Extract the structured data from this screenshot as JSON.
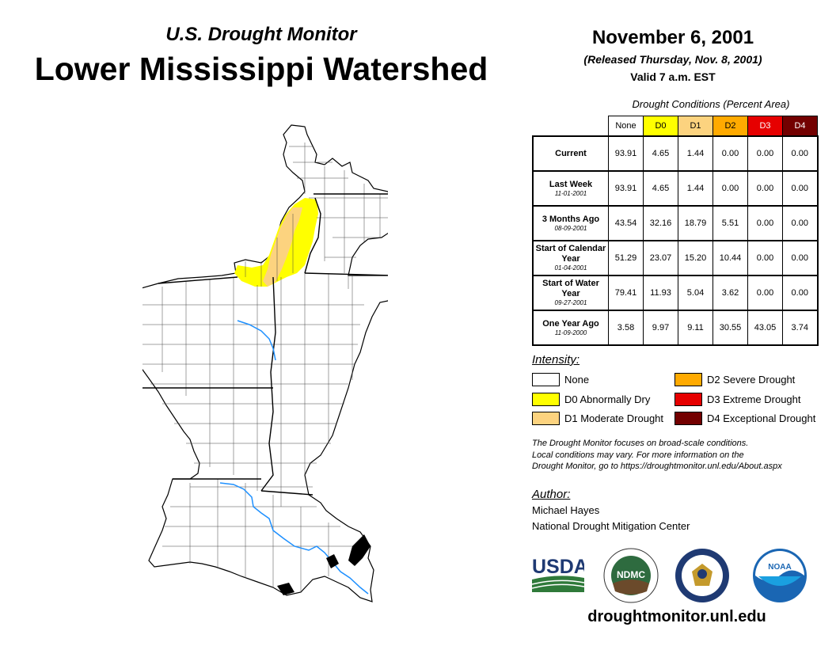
{
  "header": {
    "subtitle": "U.S. Drought Monitor",
    "title": "Lower Mississippi Watershed",
    "date": "November 6, 2001",
    "released": "(Released Thursday, Nov. 8, 2001)",
    "valid": "Valid 7 a.m. EST"
  },
  "table": {
    "caption": "Drought Conditions (Percent Area)",
    "columns": [
      {
        "label": "None",
        "color": "#ffffff"
      },
      {
        "label": "D0",
        "color": "#ffff00"
      },
      {
        "label": "D1",
        "color": "#fcd37f"
      },
      {
        "label": "D2",
        "color": "#ffaa00"
      },
      {
        "label": "D3",
        "color": "#e60000"
      },
      {
        "label": "D4",
        "color": "#730000"
      }
    ],
    "rows": [
      {
        "label": "Current",
        "date": "",
        "values": [
          "93.91",
          "4.65",
          "1.44",
          "0.00",
          "0.00",
          "0.00"
        ]
      },
      {
        "label": "Last Week",
        "date": "11-01-2001",
        "values": [
          "93.91",
          "4.65",
          "1.44",
          "0.00",
          "0.00",
          "0.00"
        ]
      },
      {
        "label": "3 Months Ago",
        "date": "08-09-2001",
        "values": [
          "43.54",
          "32.16",
          "18.79",
          "5.51",
          "0.00",
          "0.00"
        ]
      },
      {
        "label": "Start of Calendar Year",
        "date": "01-04-2001",
        "values": [
          "51.29",
          "23.07",
          "15.20",
          "10.44",
          "0.00",
          "0.00"
        ]
      },
      {
        "label": "Start of Water Year",
        "date": "09-27-2001",
        "values": [
          "79.41",
          "11.93",
          "5.04",
          "3.62",
          "0.00",
          "0.00"
        ]
      },
      {
        "label": "One Year Ago",
        "date": "11-09-2000",
        "values": [
          "3.58",
          "9.97",
          "9.11",
          "30.55",
          "43.05",
          "3.74"
        ]
      }
    ]
  },
  "legend": {
    "title": "Intensity:",
    "items": [
      {
        "label": "None",
        "color": "#ffffff"
      },
      {
        "label": "D0 Abnormally Dry",
        "color": "#ffff00"
      },
      {
        "label": "D1 Moderate Drought",
        "color": "#fcd37f"
      },
      {
        "label": "D2 Severe Drought",
        "color": "#ffaa00"
      },
      {
        "label": "D3 Extreme Drought",
        "color": "#e60000"
      },
      {
        "label": "D4 Exceptional Drought",
        "color": "#730000"
      }
    ]
  },
  "note": {
    "line1": "The Drought Monitor focuses on broad-scale conditions.",
    "line2": "Local conditions may vary. For more information on the",
    "line3": "Drought Monitor, go to https://droughtmonitor.unl.edu/About.aspx"
  },
  "author": {
    "label": "Author:",
    "name": "Michael Hayes",
    "org": "National Drought Mitigation Center"
  },
  "logos": {
    "usda": "USDA",
    "ndmc": "NDMC",
    "noaa": "NOAA"
  },
  "website": "droughtmonitor.unl.edu",
  "colors": {
    "river": "#1e90ff",
    "d0": "#ffff00",
    "d1": "#fcd37f"
  }
}
